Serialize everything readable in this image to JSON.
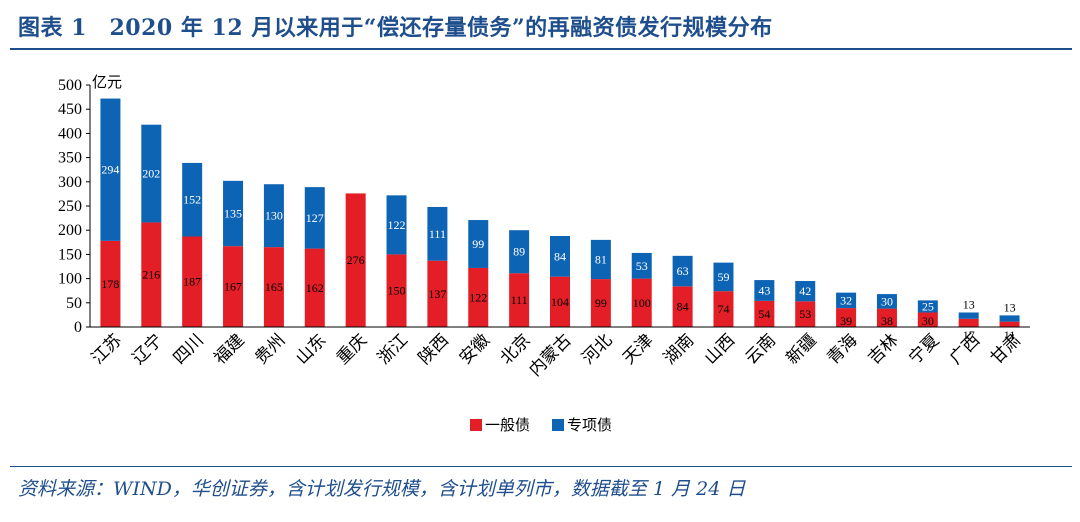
{
  "header": {
    "title": "图表 1　2020 年 12 月以来用于“偿还存量债务”的再融资债发行规模分布"
  },
  "footer": {
    "source": "资料来源：WIND，华创证券，含计划发行规模，含计划单列市，数据截至 1 月 24 日"
  },
  "colors": {
    "general": "#e41e26",
    "special": "#0e64b4",
    "title": "#1f4e8c"
  },
  "chart_data": {
    "type": "bar",
    "stacked": true,
    "unit": "亿元",
    "categories": [
      "江苏",
      "辽宁",
      "四川",
      "福建",
      "贵州",
      "山东",
      "重庆",
      "浙江",
      "陕西",
      "安徽",
      "北京",
      "内蒙古",
      "河北",
      "天津",
      "湖南",
      "山西",
      "云南",
      "新疆",
      "青海",
      "吉林",
      "宁夏",
      "广西",
      "甘肃"
    ],
    "series": [
      {
        "name": "一般债",
        "values": [
          178,
          216,
          187,
          167,
          165,
          162,
          276,
          150,
          137,
          122,
          111,
          104,
          99,
          100,
          84,
          74,
          54,
          53,
          39,
          38,
          30,
          17,
          11
        ]
      },
      {
        "name": "专项债",
        "values": [
          294,
          202,
          152,
          135,
          130,
          127,
          0,
          122,
          111,
          99,
          89,
          84,
          81,
          53,
          63,
          59,
          43,
          42,
          32,
          30,
          25,
          13,
          13
        ]
      }
    ],
    "ylim": [
      0,
      500
    ],
    "yticks": [
      0,
      50,
      100,
      150,
      200,
      250,
      300,
      350,
      400,
      450,
      500
    ],
    "legend": [
      "一般债",
      "专项债"
    ],
    "legend_position": "bottom"
  }
}
